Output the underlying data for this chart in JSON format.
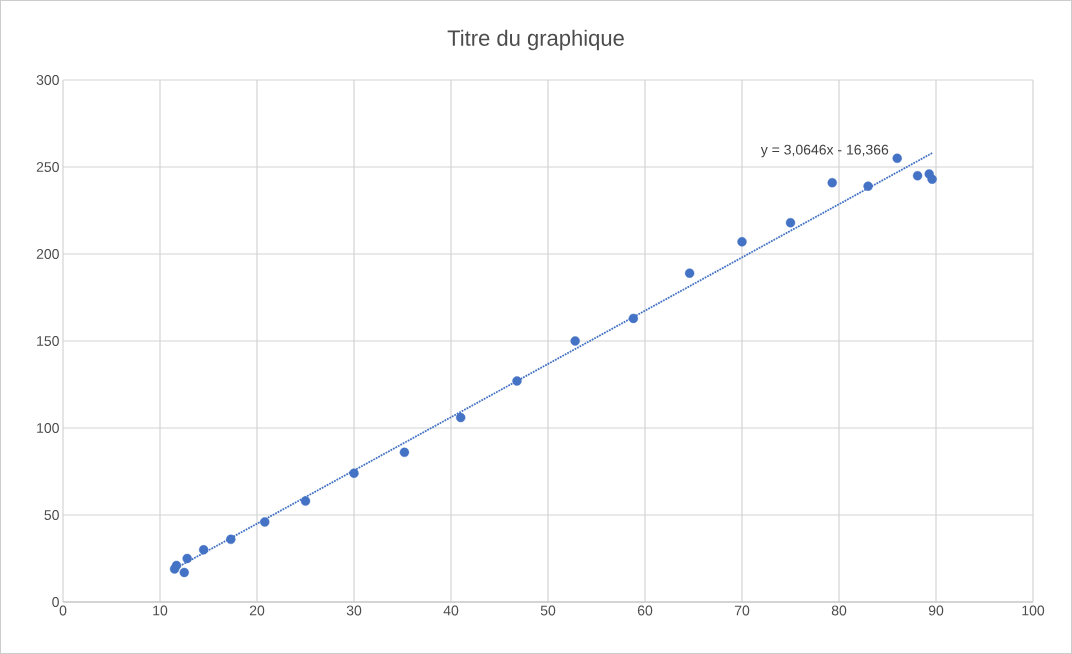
{
  "chart_data": {
    "type": "scatter",
    "title": "Titre du graphique",
    "xlim": [
      0,
      100
    ],
    "ylim": [
      0,
      300
    ],
    "xticks": [
      0,
      10,
      20,
      30,
      40,
      50,
      60,
      70,
      80,
      90,
      100
    ],
    "yticks": [
      0,
      50,
      100,
      150,
      200,
      250,
      300
    ],
    "grid": true,
    "marker": "circle",
    "series": [
      {
        "color": "#4472c4",
        "x": [
          11.5,
          11.7,
          12.5,
          12.8,
          14.5,
          17.3,
          20.8,
          25,
          30,
          35.2,
          41,
          46.8,
          52.8,
          58.8,
          64.6,
          70,
          75,
          79.3,
          83,
          86,
          88.1,
          89.3,
          89.6
        ],
        "values": [
          19,
          21,
          17,
          25,
          30,
          36,
          46,
          58,
          74,
          86,
          106,
          127,
          150,
          163,
          189,
          207,
          218,
          241,
          239,
          255,
          245,
          246,
          243
        ]
      },
      {
        "type": "line",
        "color": "#4472c4",
        "line_style": "dotted",
        "marker": "none",
        "x": [
          11.5,
          89.6
        ],
        "values": [
          19,
          258
        ]
      }
    ],
    "annotations": [
      "y = 3,0646x - 16,366"
    ]
  }
}
